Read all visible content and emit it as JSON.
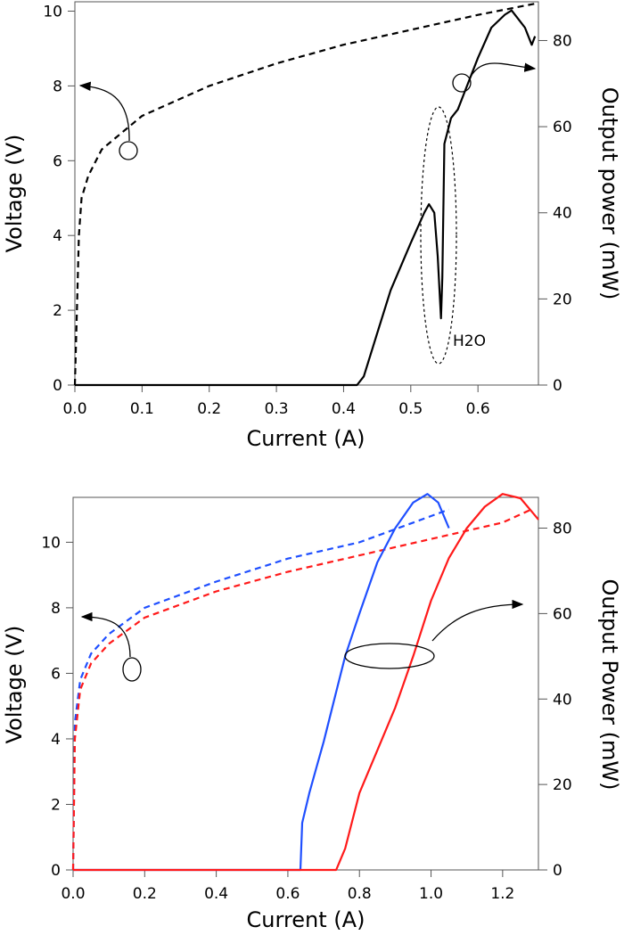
{
  "chart_data": [
    {
      "type": "line",
      "xlabel": "Current (A)",
      "ylabel": "Voltage (V)",
      "y2label": "Output power (mW)",
      "xlim": [
        0,
        0.69
      ],
      "ylim": [
        0,
        10.25
      ],
      "y2lim": [
        0,
        89
      ],
      "xticks": [
        "0.0",
        "0.1",
        "0.2",
        "0.3",
        "0.4",
        "0.5",
        "0.6"
      ],
      "yticks": [
        "0",
        "2",
        "4",
        "6",
        "8",
        "10"
      ],
      "y2ticks": [
        "0",
        "20",
        "40",
        "60",
        "80"
      ],
      "grid": false,
      "annotation": "H2O",
      "series": [
        {
          "axis": "left",
          "style": "dashed",
          "color": "#000000",
          "x": [
            0,
            0.003,
            0.006,
            0.01,
            0.02,
            0.04,
            0.08,
            0.1,
            0.2,
            0.3,
            0.4,
            0.5,
            0.6,
            0.685
          ],
          "y": [
            0,
            2,
            4,
            5,
            5.6,
            6.3,
            6.9,
            7.2,
            8.0,
            8.6,
            9.1,
            9.5,
            9.9,
            10.2
          ]
        },
        {
          "axis": "right",
          "style": "solid",
          "color": "#000000",
          "x": [
            0,
            0.42,
            0.43,
            0.45,
            0.47,
            0.5,
            0.52,
            0.527,
            0.535,
            0.54,
            0.545,
            0.547,
            0.55,
            0.56,
            0.57,
            0.58,
            0.6,
            0.62,
            0.64,
            0.65,
            0.66,
            0.67,
            0.68,
            0.685
          ],
          "y": [
            0,
            0,
            2,
            12,
            22,
            33,
            40,
            42,
            40,
            30,
            15.5,
            25,
            56,
            62,
            64,
            68,
            76,
            83,
            86,
            87,
            85,
            83,
            79,
            81
          ]
        }
      ]
    },
    {
      "type": "line",
      "xlabel": "Current (A)",
      "ylabel": "Voltage (V)",
      "y2label": "Output Power (mW)",
      "xlim": [
        0,
        1.3
      ],
      "ylim": [
        0,
        11.37
      ],
      "y2lim": [
        0,
        87.2
      ],
      "xticks": [
        "0.0",
        "0.2",
        "0.4",
        "0.6",
        "0.8",
        "1.0",
        "1.2"
      ],
      "yticks": [
        "0",
        "2",
        "4",
        "6",
        "8",
        "10"
      ],
      "y2ticks": [
        "0",
        "20",
        "40",
        "60",
        "80"
      ],
      "grid": false,
      "series": [
        {
          "axis": "left",
          "style": "dashed",
          "color": "#1f4fff",
          "x": [
            0,
            0.005,
            0.02,
            0.05,
            0.1,
            0.15,
            0.2,
            0.4,
            0.6,
            0.8,
            0.9,
            1.0,
            1.05
          ],
          "y": [
            0,
            4.5,
            5.8,
            6.6,
            7.2,
            7.6,
            8.0,
            8.8,
            9.5,
            10.0,
            10.4,
            10.8,
            11.0
          ]
        },
        {
          "axis": "left",
          "style": "dashed",
          "color": "#ff1a1a",
          "x": [
            0,
            0.005,
            0.02,
            0.05,
            0.1,
            0.15,
            0.2,
            0.4,
            0.6,
            0.8,
            1.0,
            1.2,
            1.28
          ],
          "y": [
            0,
            4,
            5.5,
            6.3,
            6.9,
            7.3,
            7.7,
            8.5,
            9.1,
            9.6,
            10.1,
            10.6,
            11.0
          ]
        },
        {
          "axis": "right",
          "style": "solid",
          "color": "#1f4fff",
          "x": [
            0,
            0.635,
            0.64,
            0.66,
            0.68,
            0.7,
            0.73,
            0.76,
            0.8,
            0.85,
            0.9,
            0.95,
            0.99,
            1.02,
            1.05
          ],
          "y": [
            0,
            0,
            11,
            18,
            24,
            30,
            40,
            50,
            60,
            72,
            80,
            86,
            88,
            86,
            80
          ]
        },
        {
          "axis": "right",
          "style": "solid",
          "color": "#ff1a1a",
          "x": [
            0,
            0.735,
            0.76,
            0.8,
            0.85,
            0.9,
            0.95,
            1.0,
            1.05,
            1.1,
            1.15,
            1.2,
            1.25,
            1.28,
            1.3
          ],
          "y": [
            0,
            0,
            5,
            18,
            28,
            38,
            50,
            63,
            73,
            80,
            85,
            88,
            87,
            84,
            82
          ]
        }
      ]
    }
  ]
}
